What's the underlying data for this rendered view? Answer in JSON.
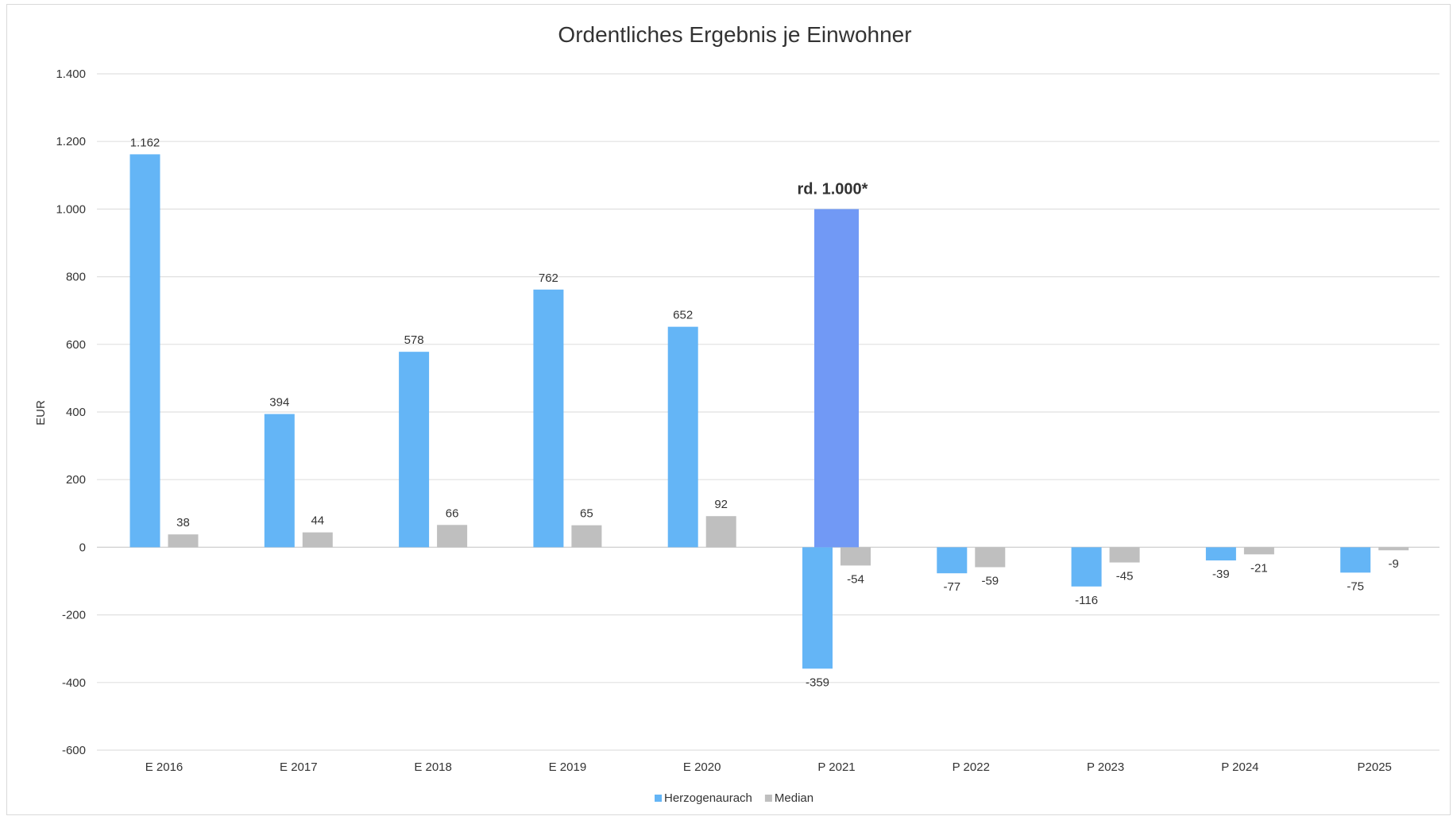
{
  "chart_data": {
    "type": "bar",
    "title": "Ordentliches Ergebnis je Einwohner",
    "ylabel": "EUR",
    "xlabel": "",
    "ylim": [
      -600,
      1400
    ],
    "yticks": [
      -600,
      -400,
      -200,
      0,
      200,
      400,
      600,
      800,
      1000,
      1200,
      1400
    ],
    "ytick_labels": [
      "-600",
      "-400",
      "-200",
      "0",
      "200",
      "400",
      "600",
      "800",
      "1.000",
      "1.200",
      "1.400"
    ],
    "grid": true,
    "legend_position": "bottom",
    "categories": [
      "E 2016",
      "E 2017",
      "E 2018",
      "E 2019",
      "E 2020",
      "P 2021",
      "P 2022",
      "P 2023",
      "P 2024",
      "P2025"
    ],
    "series": [
      {
        "name": "Herzogenaurach",
        "color": "#64b5f6",
        "values": [
          1162,
          394,
          578,
          762,
          652,
          -359,
          -77,
          -116,
          -39,
          -75
        ],
        "labels": [
          "1.162",
          "394",
          "578",
          "762",
          "652",
          "-359",
          "-77",
          "-116",
          "-39",
          "-75"
        ]
      },
      {
        "name": "Median",
        "color": "#bfbfbf",
        "values": [
          38,
          44,
          66,
          65,
          92,
          -54,
          -59,
          -45,
          -21,
          -9
        ],
        "labels": [
          "38",
          "44",
          "66",
          "65",
          "92",
          "-54",
          "-59",
          "-45",
          "-21",
          "-9"
        ]
      }
    ],
    "annotation": {
      "category": "P 2021",
      "value": 1000,
      "label": "rd. 1.000*",
      "color": "#7199f5"
    }
  }
}
